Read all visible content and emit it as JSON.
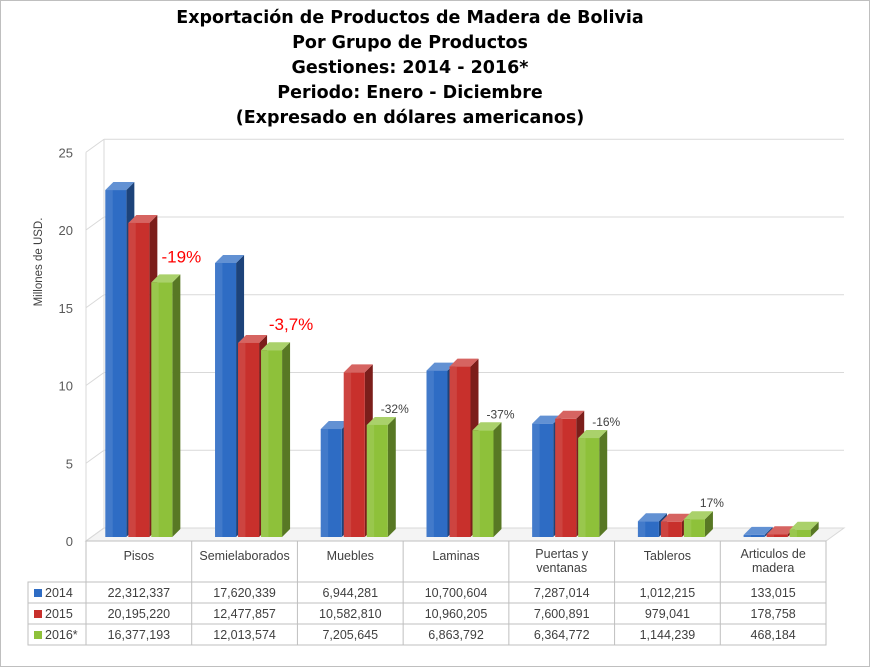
{
  "titles": [
    "Exportación de Productos de Madera de Bolivia",
    "Por Grupo de Productos",
    "Gestiones: 2014 - 2016*",
    "Periodo: Enero - Diciembre",
    "(Expresado en dólares americanos)"
  ],
  "chart_data": {
    "type": "bar",
    "ylabel": "Millones de USD.",
    "ylim": [
      0,
      25
    ],
    "yticks": [
      0,
      5,
      10,
      15,
      20,
      25
    ],
    "grid": true,
    "legend_placement": "data-table-left",
    "categories": [
      [
        "Pisos"
      ],
      [
        "Semielaborados"
      ],
      [
        "Muebles"
      ],
      [
        "Laminas"
      ],
      [
        "Puertas y",
        "ventanas"
      ],
      [
        "Tableros"
      ],
      [
        "Articulos de",
        "madera"
      ]
    ],
    "series": [
      {
        "name": "2014",
        "color": "#2e6cc4",
        "values": [
          22312337,
          17620339,
          6944281,
          10700604,
          7287014,
          1012215,
          133015
        ],
        "labels": [
          "22,312,337",
          "17,620,339",
          "6,944,281",
          "10,700,604",
          "7,287,014",
          "1,012,215",
          "133,015"
        ]
      },
      {
        "name": "2015",
        "color": "#c8302c",
        "values": [
          20195220,
          12477857,
          10582810,
          10960205,
          7600891,
          979041,
          178758
        ],
        "labels": [
          "20,195,220",
          "12,477,857",
          "10,582,810",
          "10,960,205",
          "7,600,891",
          "979,041",
          "178,758"
        ]
      },
      {
        "name": "2016*",
        "color": "#8ec13a",
        "values": [
          16377193,
          12013574,
          7205645,
          6863792,
          6364772,
          1144239,
          468184
        ],
        "labels": [
          "16,377,193",
          "12,013,574",
          "7,205,645",
          "6,863,792",
          "6,364,772",
          "1,144,239",
          "468,184"
        ]
      }
    ],
    "annotations": [
      {
        "category": 0,
        "text": "-19%",
        "style": "large-red"
      },
      {
        "category": 1,
        "text": "-3,7%",
        "style": "large-red"
      },
      {
        "category": 2,
        "text": "-32%",
        "style": "small"
      },
      {
        "category": 3,
        "text": "-37%",
        "style": "small"
      },
      {
        "category": 4,
        "text": "-16%",
        "style": "small"
      },
      {
        "category": 5,
        "text": "17%",
        "style": "small"
      }
    ]
  }
}
